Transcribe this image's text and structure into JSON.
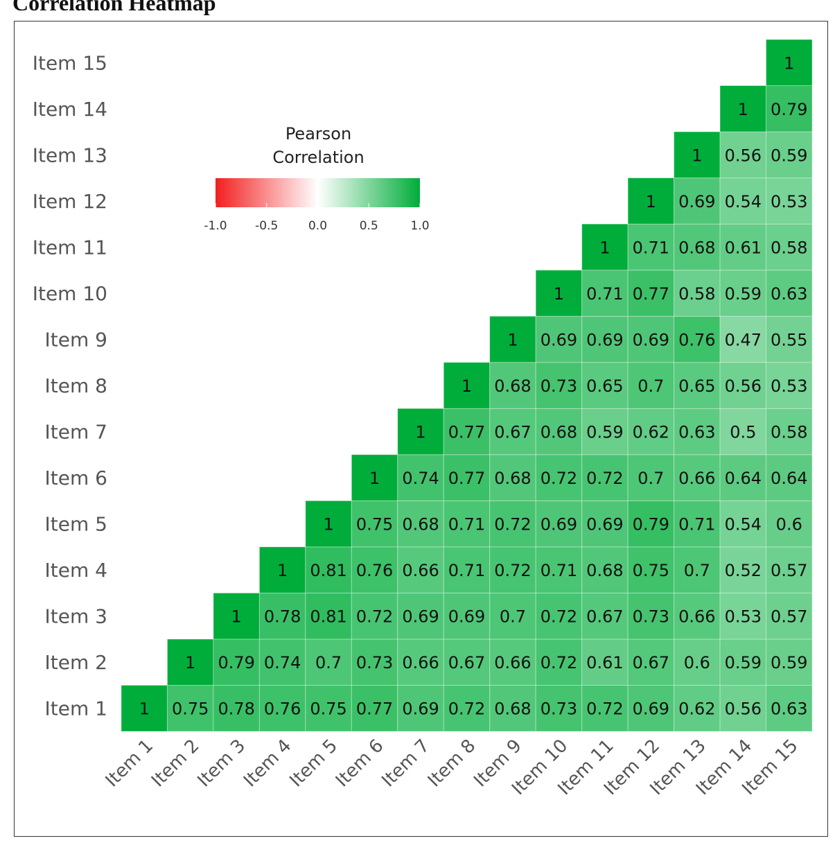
{
  "chart_data": {
    "type": "heatmap",
    "title": "Correlation Heatmap",
    "categories": [
      "Item 1",
      "Item 2",
      "Item 3",
      "Item 4",
      "Item 5",
      "Item 6",
      "Item 7",
      "Item 8",
      "Item 9",
      "Item 10",
      "Item 11",
      "Item 12",
      "Item 13",
      "Item 14",
      "Item 15"
    ],
    "matrix": [
      [
        1,
        0.75,
        0.78,
        0.76,
        0.75,
        0.77,
        0.69,
        0.72,
        0.68,
        0.73,
        0.72,
        0.69,
        0.62,
        0.56,
        0.63
      ],
      [
        null,
        1,
        0.79,
        0.74,
        0.7,
        0.73,
        0.66,
        0.67,
        0.66,
        0.72,
        0.61,
        0.67,
        0.6,
        0.59,
        0.59
      ],
      [
        null,
        null,
        1,
        0.78,
        0.81,
        0.72,
        0.69,
        0.69,
        0.7,
        0.72,
        0.67,
        0.73,
        0.66,
        0.53,
        0.57
      ],
      [
        null,
        null,
        null,
        1,
        0.81,
        0.76,
        0.66,
        0.71,
        0.72,
        0.71,
        0.68,
        0.75,
        0.7,
        0.52,
        0.57
      ],
      [
        null,
        null,
        null,
        null,
        1,
        0.75,
        0.68,
        0.71,
        0.72,
        0.69,
        0.69,
        0.79,
        0.71,
        0.54,
        0.6
      ],
      [
        null,
        null,
        null,
        null,
        null,
        1,
        0.74,
        0.77,
        0.68,
        0.72,
        0.72,
        0.7,
        0.66,
        0.64,
        0.64
      ],
      [
        null,
        null,
        null,
        null,
        null,
        null,
        1,
        0.77,
        0.67,
        0.68,
        0.59,
        0.62,
        0.63,
        0.5,
        0.58
      ],
      [
        null,
        null,
        null,
        null,
        null,
        null,
        null,
        1,
        0.68,
        0.73,
        0.65,
        0.7,
        0.65,
        0.56,
        0.53
      ],
      [
        null,
        null,
        null,
        null,
        null,
        null,
        null,
        null,
        1,
        0.69,
        0.69,
        0.69,
        0.76,
        0.47,
        0.55
      ],
      [
        null,
        null,
        null,
        null,
        null,
        null,
        null,
        null,
        null,
        1,
        0.71,
        0.77,
        0.58,
        0.59,
        0.63
      ],
      [
        null,
        null,
        null,
        null,
        null,
        null,
        null,
        null,
        null,
        null,
        1,
        0.71,
        0.68,
        0.61,
        0.58
      ],
      [
        null,
        null,
        null,
        null,
        null,
        null,
        null,
        null,
        null,
        null,
        null,
        1,
        0.69,
        0.54,
        0.53
      ],
      [
        null,
        null,
        null,
        null,
        null,
        null,
        null,
        null,
        null,
        null,
        null,
        null,
        1,
        0.56,
        0.59
      ],
      [
        null,
        null,
        null,
        null,
        null,
        null,
        null,
        null,
        null,
        null,
        null,
        null,
        null,
        1,
        0.79
      ],
      [
        null,
        null,
        null,
        null,
        null,
        null,
        null,
        null,
        null,
        null,
        null,
        null,
        null,
        null,
        1
      ]
    ],
    "colors": {
      "low": "#f21f1f",
      "mid": "#ffffff",
      "high": "#00ad3a"
    },
    "legend": {
      "title": "Pearson Correlation",
      "clim": [
        -1,
        1
      ],
      "ticks": [
        {
          "value": -1,
          "label": "-1.0"
        },
        {
          "value": -0.5,
          "label": "-0.5"
        },
        {
          "value": 0,
          "label": "0.0"
        },
        {
          "value": 0.5,
          "label": "0.5"
        },
        {
          "value": 1,
          "label": "1.0"
        }
      ]
    }
  }
}
